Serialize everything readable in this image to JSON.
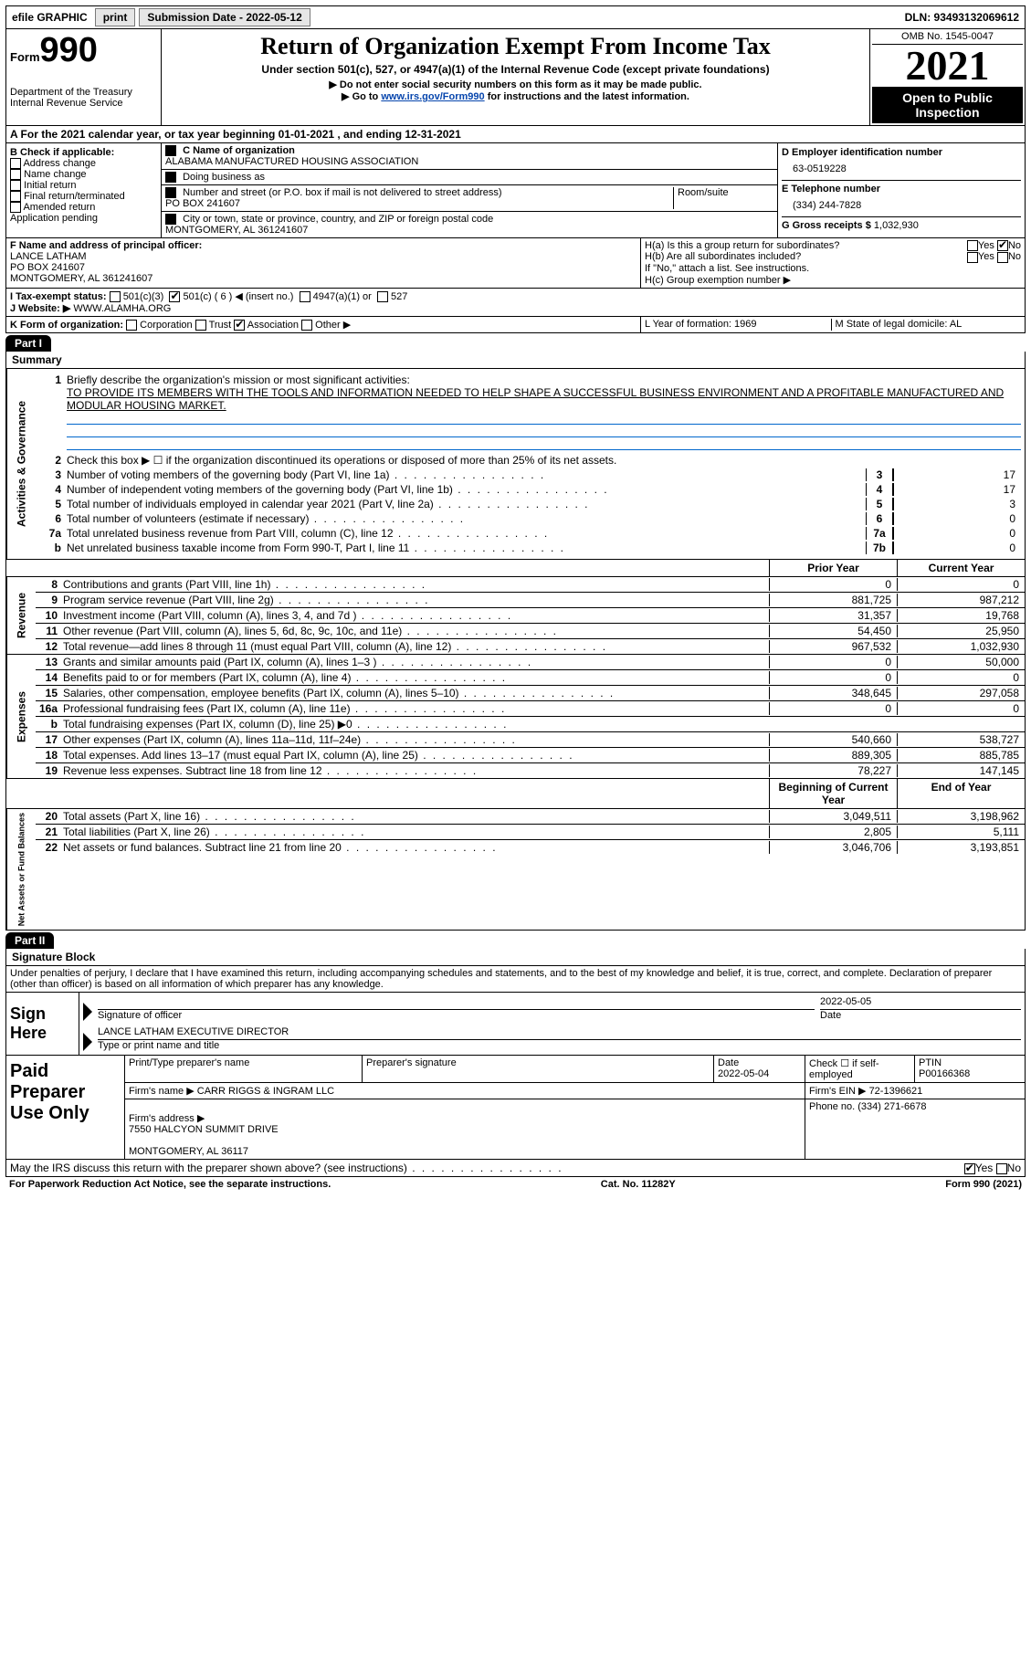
{
  "topbar": {
    "efile": "efile GRAPHIC",
    "print": "print",
    "sub_label": "Submission Date - 2022-05-12",
    "dln_label": "DLN: 93493132069612"
  },
  "header": {
    "form": "Form",
    "formno": "990",
    "dept": "Department of the Treasury\nInternal Revenue Service",
    "title": "Return of Organization Exempt From Income Tax",
    "subtitle": "Under section 501(c), 527, or 4947(a)(1) of the Internal Revenue Code (except private foundations)",
    "note1": "▶ Do not enter social security numbers on this form as it may be made public.",
    "note2_pre": "▶ Go to ",
    "note2_link": "www.irs.gov/Form990",
    "note2_post": " for instructions and the latest information.",
    "omb": "OMB No. 1545-0047",
    "year": "2021",
    "inspect": "Open to Public Inspection"
  },
  "line_a": "A For the 2021 calendar year, or tax year beginning 01-01-2021   , and ending 12-31-2021",
  "col_b": {
    "label": "B Check if applicable:",
    "items": [
      "Address change",
      "Name change",
      "Initial return",
      "Final return/terminated",
      "Amended return",
      "Application pending"
    ]
  },
  "col_c": {
    "name_lbl": "C Name of organization",
    "name": "ALABAMA MANUFACTURED HOUSING ASSOCIATION",
    "dba_lbl": "Doing business as",
    "addr_lbl": "Number and street (or P.O. box if mail is not delivered to street address)",
    "room_lbl": "Room/suite",
    "addr": "PO BOX 241607",
    "city_lbl": "City or town, state or province, country, and ZIP or foreign postal code",
    "city": "MONTGOMERY, AL  361241607"
  },
  "col_d": {
    "ein_lbl": "D Employer identification number",
    "ein": "63-0519228",
    "tel_lbl": "E Telephone number",
    "tel": "(334) 244-7828",
    "gross_lbl": "G Gross receipts $",
    "gross": "1,032,930"
  },
  "fh": {
    "f_lbl": "F Name and address of principal officer:",
    "f_val": "LANCE LATHAM\nPO BOX 241607\nMONTGOMERY, AL  361241607",
    "ha": "H(a)  Is this a group return for subordinates?",
    "hb": "H(b)  Are all subordinates included?",
    "hb_note": "If \"No,\" attach a list. See instructions.",
    "hc": "H(c)  Group exemption number ▶"
  },
  "status": {
    "i": "I   Tax-exempt status:",
    "opts": [
      "501(c)(3)",
      "501(c) ( 6 ) ◀ (insert no.)",
      "4947(a)(1) or",
      "527"
    ],
    "j": "J   Website: ▶",
    "site": "WWW.ALAMHA.ORG"
  },
  "kl": {
    "k": "K Form of organization:",
    "opts": [
      "Corporation",
      "Trust",
      "Association",
      "Other ▶"
    ],
    "l": "L Year of formation: 1969",
    "m": "M State of legal domicile: AL"
  },
  "parts": {
    "p1": "Part I",
    "p1t": "Summary",
    "p2": "Part II",
    "p2t": "Signature Block"
  },
  "summary": {
    "side_ag": "Activities & Governance",
    "side_rev": "Revenue",
    "side_exp": "Expenses",
    "side_na": "Net Assets or Fund Balances",
    "q1": "Briefly describe the organization's mission or most significant activities:",
    "q1v": "TO PROVIDE ITS MEMBERS WITH THE TOOLS AND INFORMATION NEEDED TO HELP SHAPE A SUCCESSFUL BUSINESS ENVIRONMENT AND A PROFITABLE MANUFACTURED AND MODULAR HOUSING MARKET.",
    "q2": "Check this box ▶ ☐ if the organization discontinued its operations or disposed of more than 25% of its net assets.",
    "lines_ag": [
      {
        "n": "3",
        "t": "Number of voting members of the governing body (Part VI, line 1a)",
        "b": "3",
        "v": "17"
      },
      {
        "n": "4",
        "t": "Number of independent voting members of the governing body (Part VI, line 1b)",
        "b": "4",
        "v": "17"
      },
      {
        "n": "5",
        "t": "Total number of individuals employed in calendar year 2021 (Part V, line 2a)",
        "b": "5",
        "v": "3"
      },
      {
        "n": "6",
        "t": "Total number of volunteers (estimate if necessary)",
        "b": "6",
        "v": "0"
      },
      {
        "n": "7a",
        "t": "Total unrelated business revenue from Part VIII, column (C), line 12",
        "b": "7a",
        "v": "0"
      },
      {
        "n": "b",
        "t": "Net unrelated business taxable income from Form 990-T, Part I, line 11",
        "b": "7b",
        "v": "0"
      }
    ],
    "hdr_prior": "Prior Year",
    "hdr_curr": "Current Year",
    "lines_rev": [
      {
        "n": "8",
        "t": "Contributions and grants (Part VIII, line 1h)",
        "p": "0",
        "c": "0"
      },
      {
        "n": "9",
        "t": "Program service revenue (Part VIII, line 2g)",
        "p": "881,725",
        "c": "987,212"
      },
      {
        "n": "10",
        "t": "Investment income (Part VIII, column (A), lines 3, 4, and 7d )",
        "p": "31,357",
        "c": "19,768"
      },
      {
        "n": "11",
        "t": "Other revenue (Part VIII, column (A), lines 5, 6d, 8c, 9c, 10c, and 11e)",
        "p": "54,450",
        "c": "25,950"
      },
      {
        "n": "12",
        "t": "Total revenue—add lines 8 through 11 (must equal Part VIII, column (A), line 12)",
        "p": "967,532",
        "c": "1,032,930"
      }
    ],
    "lines_exp": [
      {
        "n": "13",
        "t": "Grants and similar amounts paid (Part IX, column (A), lines 1–3 )",
        "p": "0",
        "c": "50,000"
      },
      {
        "n": "14",
        "t": "Benefits paid to or for members (Part IX, column (A), line 4)",
        "p": "0",
        "c": "0"
      },
      {
        "n": "15",
        "t": "Salaries, other compensation, employee benefits (Part IX, column (A), lines 5–10)",
        "p": "348,645",
        "c": "297,058"
      },
      {
        "n": "16a",
        "t": "Professional fundraising fees (Part IX, column (A), line 11e)",
        "p": "0",
        "c": "0"
      },
      {
        "n": "b",
        "t": "Total fundraising expenses (Part IX, column (D), line 25) ▶0",
        "p": "",
        "c": "",
        "gray": true
      },
      {
        "n": "17",
        "t": "Other expenses (Part IX, column (A), lines 11a–11d, 11f–24e)",
        "p": "540,660",
        "c": "538,727"
      },
      {
        "n": "18",
        "t": "Total expenses. Add lines 13–17 (must equal Part IX, column (A), line 25)",
        "p": "889,305",
        "c": "885,785"
      },
      {
        "n": "19",
        "t": "Revenue less expenses. Subtract line 18 from line 12",
        "p": "78,227",
        "c": "147,145"
      }
    ],
    "hdr_beg": "Beginning of Current Year",
    "hdr_end": "End of Year",
    "lines_na": [
      {
        "n": "20",
        "t": "Total assets (Part X, line 16)",
        "p": "3,049,511",
        "c": "3,198,962"
      },
      {
        "n": "21",
        "t": "Total liabilities (Part X, line 26)",
        "p": "2,805",
        "c": "5,111"
      },
      {
        "n": "22",
        "t": "Net assets or fund balances. Subtract line 21 from line 20",
        "p": "3,046,706",
        "c": "3,193,851"
      }
    ]
  },
  "sig": {
    "decl": "Under penalties of perjury, I declare that I have examined this return, including accompanying schedules and statements, and to the best of my knowledge and belief, it is true, correct, and complete. Declaration of preparer (other than officer) is based on all information of which preparer has any knowledge.",
    "sign_here": "Sign Here",
    "sig_officer": "Signature of officer",
    "date": "2022-05-05",
    "name": "LANCE LATHAM  EXECUTIVE DIRECTOR",
    "name_lbl": "Type or print name and title"
  },
  "prep": {
    "label": "Paid Preparer Use Only",
    "h1": "Print/Type preparer's name",
    "h2": "Preparer's signature",
    "h3": "Date",
    "h3v": "2022-05-04",
    "h4": "Check ☐ if self-employed",
    "h5": "PTIN",
    "h5v": "P00166368",
    "firm_lbl": "Firm's name     ▶",
    "firm": "CARR RIGGS & INGRAM LLC",
    "ein_lbl": "Firm's EIN ▶",
    "ein": "72-1396621",
    "addr_lbl": "Firm's address ▶",
    "addr": "7550 HALCYON SUMMIT DRIVE\n\nMONTGOMERY, AL  36117",
    "phone_lbl": "Phone no.",
    "phone": "(334) 271-6678"
  },
  "bottom": {
    "q": "May the IRS discuss this return with the preparer shown above? (see instructions)",
    "notice": "For Paperwork Reduction Act Notice, see the separate instructions.",
    "cat": "Cat. No. 11282Y",
    "form": "Form 990 (2021)"
  }
}
